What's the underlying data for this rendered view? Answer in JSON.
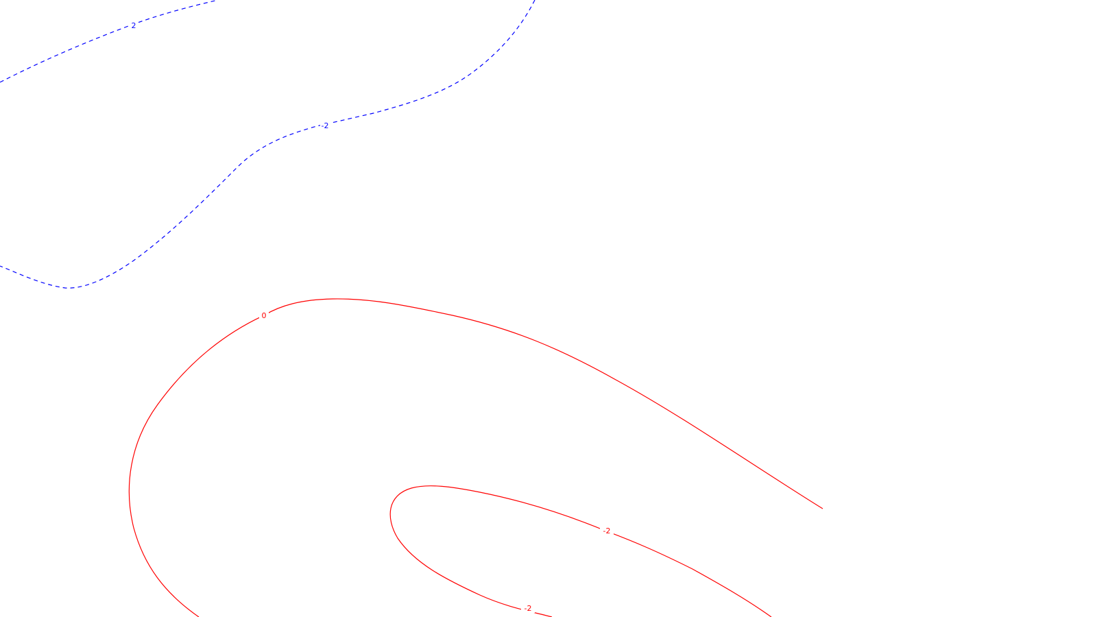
{
  "chart_data": {
    "type": "contour",
    "title": "",
    "xlabel": "",
    "ylabel": "",
    "grid": false,
    "legend": "none",
    "colors": {
      "negative_dashed": "#0000ff",
      "solid": "#ff0000",
      "background": "#ffffff"
    },
    "contours": [
      {
        "id": "contour-upper-left",
        "level_label": "2",
        "color": "#0000ff",
        "style": "dashed",
        "labels": [
          "2"
        ]
      },
      {
        "id": "contour-middle",
        "level_label": "-2",
        "color": "#0000ff",
        "style": "dashed",
        "labels": [
          "-2"
        ]
      },
      {
        "id": "contour-zero",
        "level_label": "0",
        "color": "#ff0000",
        "style": "solid",
        "labels": [
          "0"
        ]
      },
      {
        "id": "contour-minus-two-red",
        "level_label": "-2",
        "color": "#ff0000",
        "style": "solid",
        "labels": [
          "-2",
          "-2"
        ]
      }
    ]
  }
}
